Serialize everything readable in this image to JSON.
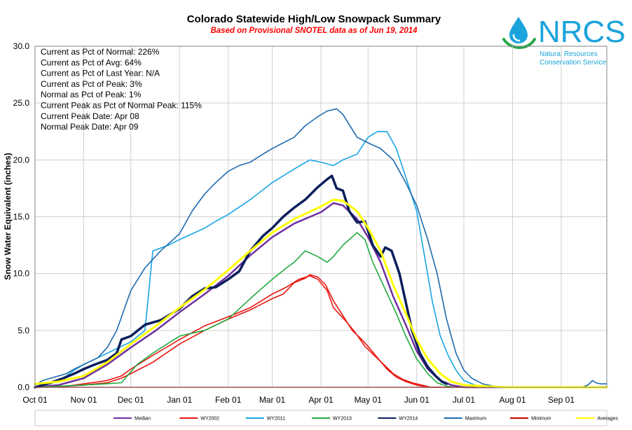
{
  "logo": {
    "name": "NRCS",
    "line1": "Natural Resources",
    "line2": "Conservation Service",
    "color": "#1aa3dc"
  },
  "chart_data": {
    "type": "line",
    "title": "Colorado Statewide High/Low Snowpack Summary",
    "subtitle": "Based on Provisional SNOTEL data as of Jun 19, 2014",
    "ylabel": "Snow Water Equivalent (inches)",
    "xlabel": "",
    "ylim": [
      0,
      30
    ],
    "yticks": [
      "0.0",
      "5.0",
      "10.0",
      "15.0",
      "20.0",
      "25.0",
      "30.0"
    ],
    "x_unit": "day of water year (Oct 01 = 0)",
    "xlim": [
      0,
      364
    ],
    "xticks": [
      {
        "label": "Oct 01",
        "day": 0
      },
      {
        "label": "Nov 01",
        "day": 31
      },
      {
        "label": "Dec 01",
        "day": 61
      },
      {
        "label": "Jan 01",
        "day": 92
      },
      {
        "label": "Feb 01",
        "day": 123
      },
      {
        "label": "Mar 01",
        "day": 151
      },
      {
        "label": "Apr 01",
        "day": 182
      },
      {
        "label": "May 01",
        "day": 212
      },
      {
        "label": "Jun 01",
        "day": 243
      },
      {
        "label": "Jul 01",
        "day": 273
      },
      {
        "label": "Aug 01",
        "day": 304
      },
      {
        "label": "Sep 01",
        "day": 335
      }
    ],
    "grid": true,
    "legend_position": "bottom",
    "annotations": [
      "Current  as Pct of Normal: 226%",
      "Current  as Pct of Avg: 64%",
      "Current  as Pct of Last Year: N/A",
      "Current  as Pct of Peak: 3%",
      "Normal  as Pct of Peak: 1%",
      "Current  Peak as Pct of Normal  Peak: 115%",
      "Current  Peak Date:  Apr 08",
      "Normal  Peak Date:  Apr 09"
    ],
    "series": [
      {
        "name": "Median",
        "color": "#7030a0",
        "width": 2.5,
        "points": [
          [
            0,
            0.0
          ],
          [
            15,
            0.2
          ],
          [
            31,
            0.8
          ],
          [
            46,
            2.0
          ],
          [
            61,
            3.5
          ],
          [
            77,
            5.0
          ],
          [
            92,
            6.6
          ],
          [
            108,
            8.2
          ],
          [
            123,
            9.8
          ],
          [
            137,
            11.6
          ],
          [
            151,
            13.2
          ],
          [
            165,
            14.4
          ],
          [
            182,
            15.4
          ],
          [
            190,
            16.2
          ],
          [
            196,
            16.0
          ],
          [
            205,
            14.8
          ],
          [
            212,
            13.2
          ],
          [
            220,
            11.0
          ],
          [
            228,
            8.0
          ],
          [
            236,
            5.5
          ],
          [
            243,
            3.2
          ],
          [
            250,
            1.6
          ],
          [
            258,
            0.6
          ],
          [
            265,
            0.2
          ],
          [
            273,
            0.0
          ],
          [
            364,
            0.0
          ]
        ]
      },
      {
        "name": "WY2002",
        "color": "#e8160f",
        "width": 1.6,
        "points": [
          [
            0,
            0.0
          ],
          [
            20,
            0.1
          ],
          [
            31,
            0.2
          ],
          [
            46,
            0.4
          ],
          [
            55,
            0.8
          ],
          [
            61,
            1.2
          ],
          [
            75,
            2.2
          ],
          [
            92,
            3.8
          ],
          [
            108,
            5.0
          ],
          [
            123,
            6.0
          ],
          [
            137,
            6.8
          ],
          [
            151,
            7.8
          ],
          [
            158,
            8.2
          ],
          [
            165,
            9.2
          ],
          [
            172,
            9.6
          ],
          [
            175,
            9.9
          ],
          [
            180,
            9.7
          ],
          [
            185,
            9.0
          ],
          [
            190,
            7.6
          ],
          [
            196,
            6.3
          ],
          [
            202,
            5.0
          ],
          [
            208,
            4.2
          ],
          [
            212,
            3.6
          ],
          [
            218,
            2.6
          ],
          [
            224,
            1.6
          ],
          [
            230,
            0.9
          ],
          [
            236,
            0.5
          ],
          [
            243,
            0.2
          ],
          [
            250,
            0.0
          ],
          [
            364,
            0.0
          ]
        ]
      },
      {
        "name": "WY2002 (2)",
        "color": "#e8160f",
        "width": 1.6,
        "points": [
          [
            0,
            0.0
          ],
          [
            20,
            0.1
          ],
          [
            31,
            0.3
          ],
          [
            46,
            0.6
          ],
          [
            55,
            1.0
          ],
          [
            61,
            1.6
          ],
          [
            75,
            2.8
          ],
          [
            92,
            4.2
          ],
          [
            108,
            5.4
          ],
          [
            123,
            6.2
          ],
          [
            137,
            7.0
          ],
          [
            151,
            8.2
          ],
          [
            160,
            8.8
          ],
          [
            168,
            9.5
          ],
          [
            175,
            9.8
          ],
          [
            180,
            9.5
          ],
          [
            186,
            8.5
          ],
          [
            190,
            7.0
          ],
          [
            198,
            5.8
          ],
          [
            204,
            4.8
          ],
          [
            210,
            3.6
          ],
          [
            216,
            2.8
          ],
          [
            222,
            2.0
          ],
          [
            228,
            1.2
          ],
          [
            234,
            0.7
          ],
          [
            240,
            0.4
          ],
          [
            246,
            0.2
          ],
          [
            252,
            0.0
          ],
          [
            364,
            0.0
          ]
        ]
      },
      {
        "name": "WY2011",
        "color": "#17a5e3",
        "width": 1.6,
        "points": [
          [
            0,
            0.0
          ],
          [
            15,
            0.5
          ],
          [
            25,
            1.5
          ],
          [
            31,
            2.0
          ],
          [
            46,
            3.0
          ],
          [
            61,
            4.0
          ],
          [
            70,
            5.0
          ],
          [
            75,
            12.0
          ],
          [
            85,
            12.5
          ],
          [
            92,
            13.0
          ],
          [
            100,
            13.5
          ],
          [
            108,
            14.0
          ],
          [
            115,
            14.6
          ],
          [
            123,
            15.2
          ],
          [
            137,
            16.5
          ],
          [
            151,
            18.0
          ],
          [
            165,
            19.2
          ],
          [
            175,
            20.0
          ],
          [
            182,
            19.8
          ],
          [
            190,
            19.5
          ],
          [
            196,
            20.0
          ],
          [
            205,
            20.5
          ],
          [
            212,
            22.0
          ],
          [
            218,
            22.5
          ],
          [
            224,
            22.5
          ],
          [
            230,
            21.0
          ],
          [
            236,
            18.5
          ],
          [
            243,
            15.5
          ],
          [
            248,
            11.5
          ],
          [
            253,
            7.5
          ],
          [
            258,
            4.5
          ],
          [
            263,
            2.8
          ],
          [
            268,
            1.5
          ],
          [
            273,
            0.6
          ],
          [
            280,
            0.2
          ],
          [
            290,
            0.0
          ],
          [
            364,
            0.0
          ]
        ]
      },
      {
        "name": "WY2013",
        "color": "#1faa3d",
        "width": 1.6,
        "points": [
          [
            0,
            0.0
          ],
          [
            31,
            0.2
          ],
          [
            45,
            0.3
          ],
          [
            55,
            0.4
          ],
          [
            65,
            2.0
          ],
          [
            75,
            3.0
          ],
          [
            92,
            4.5
          ],
          [
            108,
            5.0
          ],
          [
            123,
            6.0
          ],
          [
            137,
            7.8
          ],
          [
            151,
            9.5
          ],
          [
            160,
            10.5
          ],
          [
            165,
            11.0
          ],
          [
            172,
            12.0
          ],
          [
            180,
            11.5
          ],
          [
            186,
            11.0
          ],
          [
            190,
            11.5
          ],
          [
            196,
            12.5
          ],
          [
            205,
            13.6
          ],
          [
            210,
            13.0
          ],
          [
            215,
            11.0
          ],
          [
            220,
            9.5
          ],
          [
            225,
            8.0
          ],
          [
            230,
            6.5
          ],
          [
            236,
            4.5
          ],
          [
            243,
            2.5
          ],
          [
            250,
            1.2
          ],
          [
            256,
            0.4
          ],
          [
            262,
            0.1
          ],
          [
            268,
            0.0
          ],
          [
            364,
            0.0
          ]
        ]
      },
      {
        "name": "WY2014",
        "color": "#0b1f5c",
        "width": 3.5,
        "points": [
          [
            0,
            0.0
          ],
          [
            10,
            0.4
          ],
          [
            18,
            0.8
          ],
          [
            25,
            1.2
          ],
          [
            31,
            1.6
          ],
          [
            38,
            2.0
          ],
          [
            46,
            2.4
          ],
          [
            52,
            3.0
          ],
          [
            55,
            4.2
          ],
          [
            61,
            4.5
          ],
          [
            70,
            5.5
          ],
          [
            80,
            5.9
          ],
          [
            92,
            6.9
          ],
          [
            100,
            8.0
          ],
          [
            108,
            8.7
          ],
          [
            115,
            8.8
          ],
          [
            123,
            9.5
          ],
          [
            130,
            10.2
          ],
          [
            137,
            12.0
          ],
          [
            145,
            13.3
          ],
          [
            151,
            14.0
          ],
          [
            158,
            15.0
          ],
          [
            165,
            15.8
          ],
          [
            172,
            16.5
          ],
          [
            180,
            17.6
          ],
          [
            186,
            18.3
          ],
          [
            189,
            18.6
          ],
          [
            192,
            17.5
          ],
          [
            196,
            17.3
          ],
          [
            200,
            15.5
          ],
          [
            205,
            14.5
          ],
          [
            210,
            14.6
          ],
          [
            215,
            12.5
          ],
          [
            220,
            11.5
          ],
          [
            223,
            12.3
          ],
          [
            227,
            12.0
          ],
          [
            232,
            10.0
          ],
          [
            236,
            7.5
          ],
          [
            240,
            5.0
          ],
          [
            245,
            3.0
          ],
          [
            250,
            1.8
          ],
          [
            255,
            1.0
          ],
          [
            259,
            0.5
          ],
          [
            262,
            0.3
          ]
        ]
      },
      {
        "name": "Maximum",
        "color": "#1f6aae",
        "width": 1.6,
        "points": [
          [
            0,
            0.2
          ],
          [
            5,
            0.6
          ],
          [
            10,
            0.8
          ],
          [
            15,
            1.0
          ],
          [
            20,
            1.2
          ],
          [
            25,
            1.6
          ],
          [
            31,
            2.0
          ],
          [
            40,
            2.6
          ],
          [
            46,
            3.5
          ],
          [
            52,
            5.0
          ],
          [
            61,
            8.5
          ],
          [
            70,
            10.5
          ],
          [
            80,
            12.0
          ],
          [
            92,
            13.5
          ],
          [
            100,
            15.5
          ],
          [
            108,
            17.0
          ],
          [
            115,
            18.0
          ],
          [
            123,
            19.0
          ],
          [
            130,
            19.5
          ],
          [
            137,
            19.8
          ],
          [
            145,
            20.5
          ],
          [
            151,
            21.0
          ],
          [
            158,
            21.5
          ],
          [
            165,
            22.0
          ],
          [
            172,
            23.0
          ],
          [
            180,
            23.8
          ],
          [
            186,
            24.3
          ],
          [
            192,
            24.5
          ],
          [
            196,
            24.0
          ],
          [
            205,
            22.0
          ],
          [
            212,
            21.5
          ],
          [
            220,
            21.0
          ],
          [
            228,
            20.0
          ],
          [
            236,
            18.0
          ],
          [
            243,
            16.0
          ],
          [
            250,
            13.0
          ],
          [
            256,
            10.0
          ],
          [
            262,
            6.0
          ],
          [
            268,
            3.0
          ],
          [
            273,
            1.5
          ],
          [
            278,
            0.8
          ],
          [
            285,
            0.3
          ],
          [
            292,
            0.1
          ],
          [
            300,
            0.0
          ],
          [
            340,
            0.0
          ],
          [
            348,
            0.0
          ],
          [
            352,
            0.2
          ],
          [
            355,
            0.6
          ],
          [
            357,
            0.4
          ],
          [
            360,
            0.3
          ],
          [
            364,
            0.3
          ]
        ]
      },
      {
        "name": "Minimum",
        "color": "#c00000",
        "width": 1.6,
        "points": [
          [
            0,
            0.0
          ],
          [
            364,
            0.0
          ]
        ]
      },
      {
        "name": "Averages",
        "color": "#ffff00",
        "width": 3.0,
        "points": [
          [
            0,
            0.3
          ],
          [
            15,
            0.5
          ],
          [
            31,
            1.0
          ],
          [
            46,
            2.2
          ],
          [
            61,
            3.8
          ],
          [
            77,
            5.4
          ],
          [
            92,
            7.0
          ],
          [
            108,
            8.6
          ],
          [
            123,
            10.3
          ],
          [
            137,
            12.0
          ],
          [
            151,
            13.6
          ],
          [
            165,
            14.8
          ],
          [
            182,
            15.9
          ],
          [
            190,
            16.5
          ],
          [
            196,
            16.4
          ],
          [
            205,
            15.5
          ],
          [
            212,
            14.0
          ],
          [
            220,
            12.0
          ],
          [
            228,
            9.0
          ],
          [
            236,
            6.5
          ],
          [
            243,
            4.2
          ],
          [
            250,
            2.5
          ],
          [
            258,
            1.2
          ],
          [
            265,
            0.5
          ],
          [
            273,
            0.2
          ],
          [
            285,
            0.1
          ],
          [
            300,
            0.0
          ],
          [
            364,
            0.0
          ]
        ]
      }
    ],
    "legend": [
      {
        "label": "Median",
        "color": "#7030a0"
      },
      {
        "label": "WY2002",
        "color": "#e8160f"
      },
      {
        "label": "WY2011",
        "color": "#17a5e3"
      },
      {
        "label": "WY2013",
        "color": "#1faa3d"
      },
      {
        "label": "WY2014",
        "color": "#0b1f5c"
      },
      {
        "label": "Maximum",
        "color": "#1f6aae"
      },
      {
        "label": "Minimum",
        "color": "#c00000"
      },
      {
        "label": "Averages",
        "color": "#ffff00"
      }
    ]
  }
}
